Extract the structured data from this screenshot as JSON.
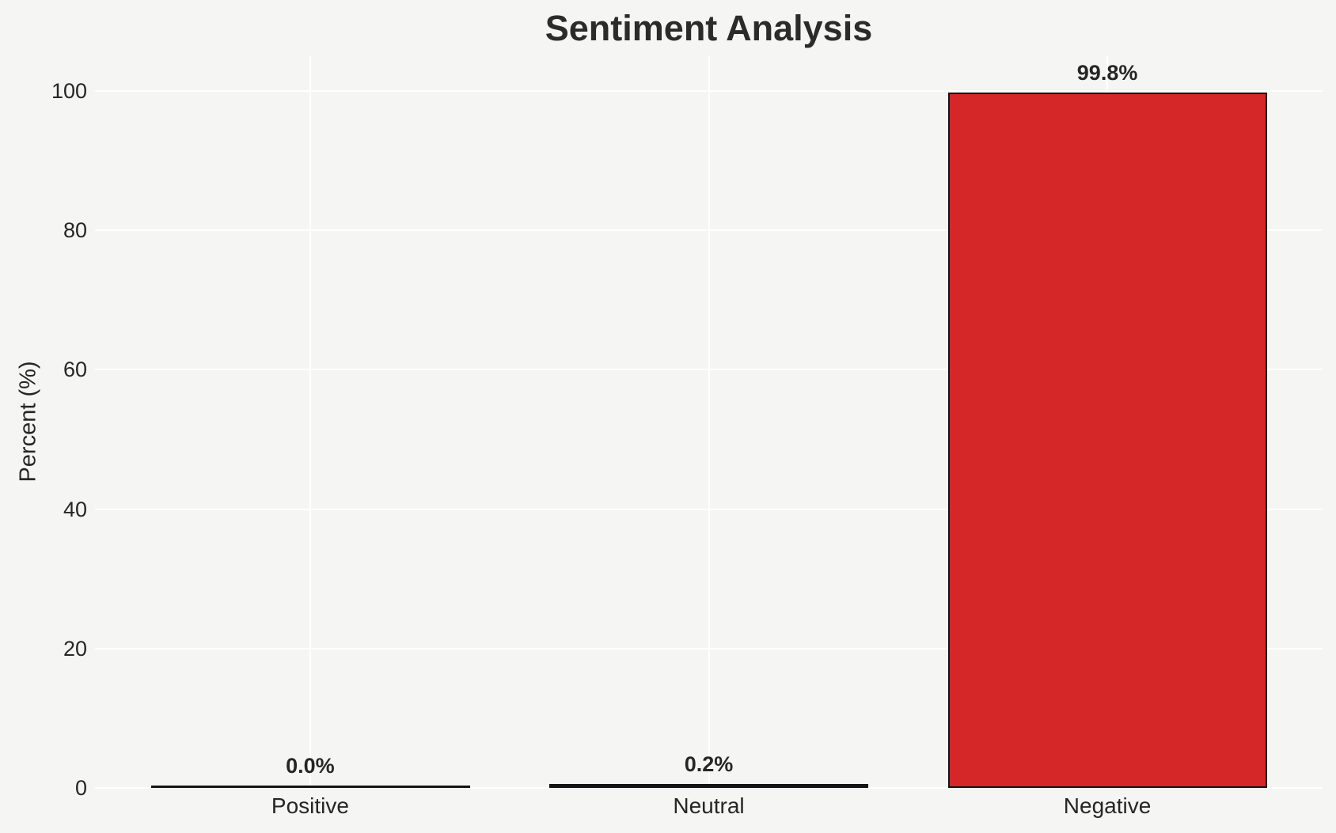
{
  "figure": {
    "background_color": "#f5f5f4",
    "grid_color": "#ffffff",
    "text_color": "#262626",
    "title_color": "#2b2b2b"
  },
  "chart_data": {
    "type": "bar",
    "title": "Sentiment Analysis",
    "xlabel": "",
    "ylabel": "Percent (%)",
    "categories": [
      "Positive",
      "Neutral",
      "Negative"
    ],
    "values": [
      0.0,
      0.2,
      99.8
    ],
    "value_labels": [
      "0.0%",
      "0.2%",
      "99.8%"
    ],
    "bar_fill_colors": [
      null,
      null,
      "#d62728"
    ],
    "bar_edge_color": "#141414",
    "yticks": [
      0,
      20,
      40,
      60,
      80,
      100
    ],
    "ylim": [
      0,
      105
    ],
    "grid": true,
    "legend": false
  }
}
